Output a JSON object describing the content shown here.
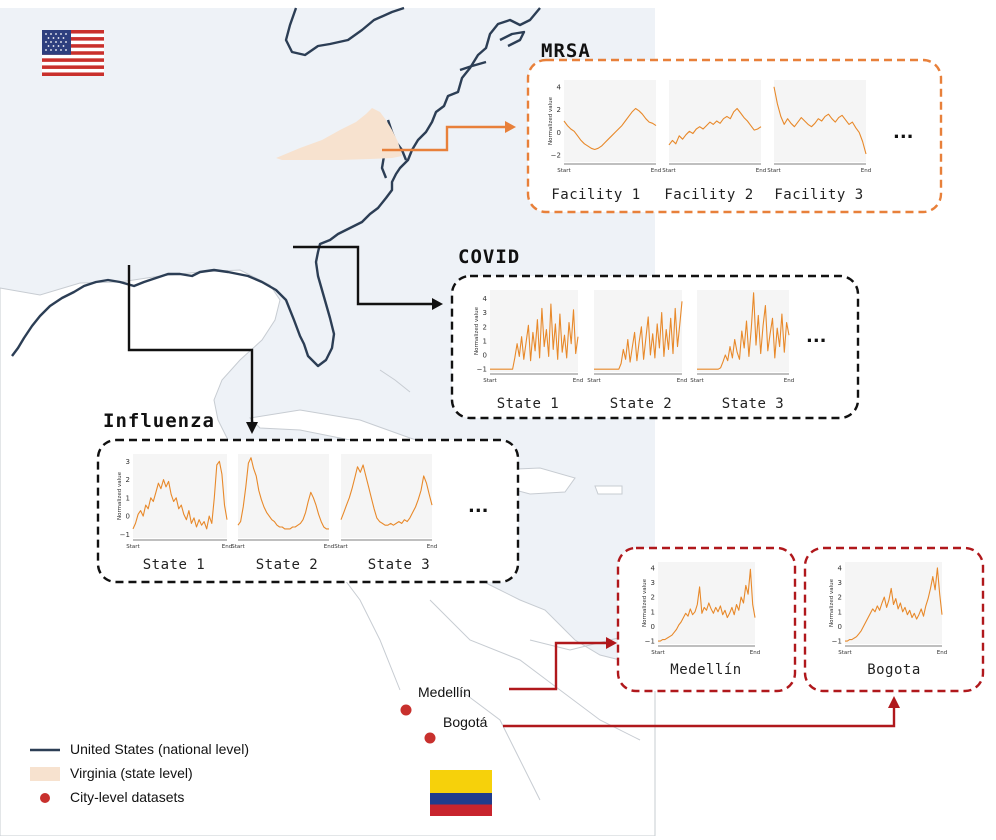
{
  "titles": {
    "mrsa": "MRSA",
    "covid": "COVID",
    "influenza": "Influenza"
  },
  "ellipsis": "...",
  "chart_axes": {
    "y_label": "Normalized value",
    "x_start": "Start",
    "x_end": "End"
  },
  "mrsa_panels": [
    {
      "label": "Facility 1",
      "y_ticks": [
        "4",
        "2",
        "0",
        "−2"
      ],
      "series": [
        1.0,
        0.6,
        0.3,
        0.1,
        -0.3,
        -0.7,
        -1.0,
        -1.2,
        -1.4,
        -1.5,
        -1.4,
        -1.2,
        -0.9,
        -0.6,
        -0.3,
        0.0,
        0.3,
        0.6,
        1.0,
        1.4,
        1.8,
        2.1,
        1.9,
        1.6,
        1.2,
        0.9,
        0.8,
        0.6
      ]
    },
    {
      "label": "Facility 2",
      "y_ticks": [],
      "series": [
        -1.1,
        -0.7,
        -1.0,
        -0.3,
        -0.6,
        -0.2,
        0.1,
        -0.1,
        0.3,
        0.5,
        0.3,
        0.6,
        0.9,
        0.7,
        1.0,
        0.8,
        1.2,
        1.4,
        1.2,
        1.8,
        2.1,
        1.7,
        1.3,
        1.0,
        0.6,
        0.2,
        0.3,
        0.5
      ]
    },
    {
      "label": "Facility 3",
      "y_ticks": [],
      "series": [
        4.0,
        2.5,
        1.4,
        0.7,
        1.2,
        0.8,
        0.5,
        0.9,
        1.3,
        1.0,
        0.7,
        0.5,
        0.8,
        1.2,
        1.0,
        1.4,
        1.6,
        1.2,
        0.9,
        1.3,
        1.5,
        1.1,
        0.7,
        0.9,
        0.4,
        0.0,
        -0.8,
        -1.9
      ]
    }
  ],
  "covid_panels": [
    {
      "label": "State 1",
      "y_ticks": [
        "4",
        "3",
        "2",
        "1",
        "0",
        "−1"
      ],
      "series": [
        -1.0,
        -1.0,
        -1.0,
        -1.0,
        -1.0,
        -1.0,
        -1.0,
        -1.0,
        -1.0,
        -1.0,
        -1.0,
        -0.2,
        0.8,
        -0.1,
        1.3,
        -0.3,
        0.9,
        2.1,
        -0.4,
        1.6,
        0.3,
        2.5,
        -0.2,
        3.3,
        0.6,
        1.8,
        -0.1,
        3.6,
        0.4,
        2.2,
        -0.3,
        2.9,
        0.2,
        1.4,
        -0.2,
        2.3,
        0.8,
        3.2,
        0.1,
        1.3
      ]
    },
    {
      "label": "State 2",
      "y_ticks": [],
      "series": [
        -1.0,
        -1.0,
        -1.0,
        -1.0,
        -1.0,
        -1.0,
        -1.0,
        -1.0,
        -1.0,
        -1.0,
        -1.0,
        -1.0,
        -0.6,
        0.4,
        -0.3,
        1.1,
        -0.5,
        0.6,
        1.6,
        -0.4,
        0.9,
        2.0,
        -0.3,
        1.2,
        2.7,
        0.0,
        1.5,
        -0.2,
        2.2,
        0.5,
        3.0,
        -0.1,
        1.8,
        0.4,
        2.6,
        0.1,
        3.3,
        0.6,
        2.1,
        3.8
      ]
    },
    {
      "label": "State 3",
      "y_ticks": [],
      "series": [
        -1.0,
        -1.0,
        -1.0,
        -1.0,
        -1.0,
        -1.0,
        -1.0,
        -1.0,
        -1.0,
        -1.0,
        -0.9,
        -0.5,
        0.0,
        -0.4,
        0.6,
        -0.2,
        1.1,
        0.2,
        -0.3,
        1.7,
        0.5,
        2.4,
        -0.1,
        1.9,
        4.4,
        0.7,
        2.8,
        0.1,
        2.1,
        3.5,
        0.3,
        1.5,
        2.6,
        -0.2,
        1.9,
        0.6,
        2.9,
        0.2,
        2.3,
        1.4
      ]
    }
  ],
  "influenza_panels": [
    {
      "label": "State 1",
      "y_ticks": [
        "3",
        "2",
        "1",
        "0",
        "−1"
      ],
      "series": [
        -0.7,
        -0.4,
        0.1,
        0.3,
        0.0,
        0.6,
        0.4,
        1.0,
        0.8,
        1.3,
        1.8,
        1.5,
        2.0,
        1.6,
        1.9,
        1.2,
        0.8,
        1.0,
        0.4,
        0.6,
        0.1,
        -0.2,
        0.3,
        -0.4,
        -0.1,
        -0.6,
        -0.2,
        -0.5,
        -0.3,
        -0.7,
        0.0,
        -0.4,
        1.0,
        2.8,
        3.0,
        2.3,
        0.6,
        -0.2
      ]
    },
    {
      "label": "State 2",
      "y_ticks": [],
      "series": [
        -0.5,
        -0.3,
        0.5,
        1.6,
        2.9,
        3.2,
        2.6,
        2.2,
        1.4,
        0.9,
        0.5,
        0.2,
        0.0,
        -0.2,
        -0.3,
        -0.5,
        -0.6,
        -0.6,
        -0.7,
        -0.7,
        -0.7,
        -0.6,
        -0.6,
        -0.5,
        -0.4,
        -0.2,
        0.2,
        0.8,
        1.3,
        1.0,
        0.6,
        0.1,
        -0.3,
        -0.6,
        -0.7,
        -0.7
      ]
    },
    {
      "label": "State 3",
      "y_ticks": [],
      "series": [
        -0.2,
        0.2,
        0.6,
        1.0,
        1.5,
        2.1,
        2.7,
        2.4,
        2.8,
        2.2,
        1.6,
        1.0,
        0.4,
        -0.1,
        -0.3,
        -0.4,
        -0.5,
        -0.5,
        -0.4,
        -0.5,
        -0.4,
        -0.3,
        -0.4,
        -0.2,
        -0.3,
        -0.1,
        0.2,
        0.5,
        0.9,
        1.4,
        2.2,
        1.8,
        1.2,
        0.6
      ]
    }
  ],
  "city_panels": [
    {
      "label": "Medellín",
      "y_ticks": [
        "4",
        "3",
        "2",
        "1",
        "0",
        "−1"
      ],
      "series": [
        -1.0,
        -1.0,
        -0.9,
        -0.9,
        -0.8,
        -0.7,
        -0.6,
        -0.4,
        -0.2,
        0.1,
        0.3,
        0.6,
        0.9,
        0.7,
        1.2,
        0.8,
        1.0,
        1.5,
        2.7,
        0.9,
        1.3,
        1.1,
        1.6,
        1.2,
        0.9,
        1.3,
        1.0,
        1.4,
        0.8,
        1.1,
        0.6,
        0.9,
        1.3,
        0.8,
        1.5,
        1.1,
        2.0,
        1.6,
        2.8,
        2.2,
        3.9,
        1.5,
        0.6
      ]
    },
    {
      "label": "Bogota",
      "y_ticks": [
        "4",
        "3",
        "2",
        "1",
        "0",
        "−1"
      ],
      "series": [
        -1.0,
        -1.0,
        -0.9,
        -0.9,
        -0.8,
        -0.7,
        -0.5,
        -0.3,
        0.0,
        0.3,
        0.6,
        0.9,
        1.2,
        1.0,
        1.4,
        1.1,
        1.6,
        2.0,
        1.3,
        1.8,
        2.6,
        1.5,
        1.9,
        1.2,
        1.6,
        1.0,
        1.3,
        0.8,
        1.1,
        0.6,
        0.9,
        0.5,
        0.8,
        1.2,
        0.7,
        1.4,
        1.9,
        2.6,
        3.4,
        2.5,
        4.0,
        2.2,
        0.8
      ]
    }
  ],
  "cities": {
    "medellin": "Medellín",
    "bogota": "Bogotá"
  },
  "legend": {
    "national": "United States (national level)",
    "state": "Virginia (state level)",
    "city": "City-level datasets"
  },
  "colors": {
    "series": "#e8892a",
    "mrsa_frame": "#e8803a",
    "black_frame": "#111111",
    "city_frame": "#b0181c",
    "us_coast": "#2c3e55",
    "virginia": "#f7e2cf",
    "city_dot": "#c8302d",
    "ocean": "#eef2f7",
    "land": "#ffffff",
    "panel_bg": "#f5f5f5"
  }
}
